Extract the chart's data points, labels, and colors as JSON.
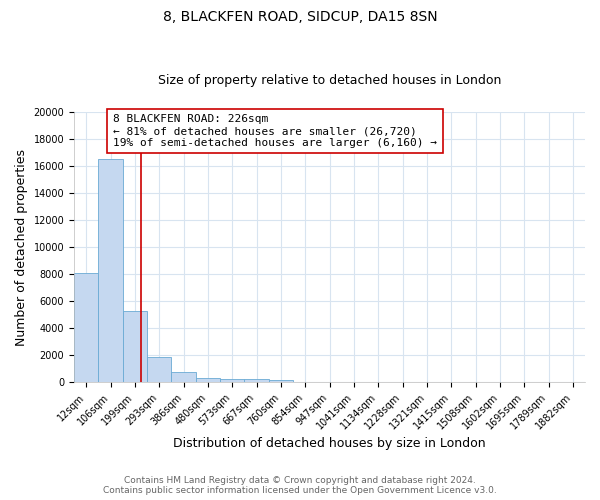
{
  "title": "8, BLACKFEN ROAD, SIDCUP, DA15 8SN",
  "subtitle": "Size of property relative to detached houses in London",
  "xlabel": "Distribution of detached houses by size in London",
  "ylabel": "Number of detached properties",
  "bar_labels": [
    "12sqm",
    "106sqm",
    "199sqm",
    "293sqm",
    "386sqm",
    "480sqm",
    "573sqm",
    "667sqm",
    "760sqm",
    "854sqm",
    "947sqm",
    "1041sqm",
    "1134sqm",
    "1228sqm",
    "1321sqm",
    "1415sqm",
    "1508sqm",
    "1602sqm",
    "1695sqm",
    "1789sqm",
    "1882sqm"
  ],
  "bar_values": [
    8100,
    16500,
    5300,
    1850,
    750,
    320,
    270,
    230,
    200,
    0,
    0,
    0,
    0,
    0,
    0,
    0,
    0,
    0,
    0,
    0,
    0
  ],
  "bar_color": "#c5d8f0",
  "bar_edge_color": "#6aaad4",
  "property_line_x": 2.27,
  "property_line_color": "#cc0000",
  "annotation_line1": "8 BLACKFEN ROAD: 226sqm",
  "annotation_line2": "← 81% of detached houses are smaller (26,720)",
  "annotation_line3": "19% of semi-detached houses are larger (6,160) →",
  "annotation_box_color": "white",
  "annotation_box_edge_color": "#cc0000",
  "ylim": [
    0,
    20000
  ],
  "yticks": [
    0,
    2000,
    4000,
    6000,
    8000,
    10000,
    12000,
    14000,
    16000,
    18000,
    20000
  ],
  "footer_line1": "Contains HM Land Registry data © Crown copyright and database right 2024.",
  "footer_line2": "Contains public sector information licensed under the Open Government Licence v3.0.",
  "bg_color": "#ffffff",
  "plot_bg_color": "#ffffff",
  "grid_color": "#d8e4f0",
  "title_fontsize": 10,
  "subtitle_fontsize": 9,
  "axis_label_fontsize": 9,
  "tick_fontsize": 7,
  "annotation_fontsize": 8,
  "footer_fontsize": 6.5
}
